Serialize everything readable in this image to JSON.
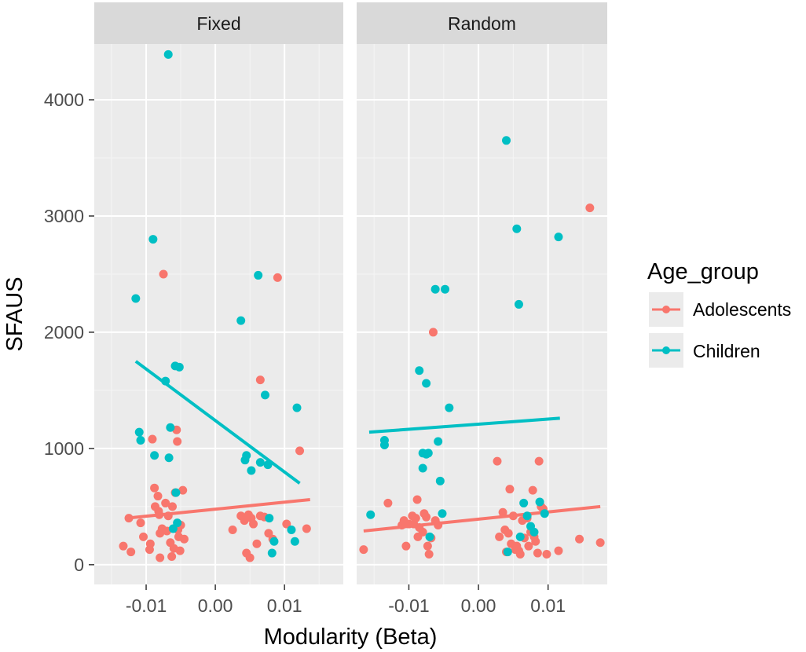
{
  "chart_data": {
    "type": "scatter",
    "xlabel": "Modularity (Beta)",
    "ylabel": "SFAUS",
    "xlim": [
      -0.0175,
      0.0185
    ],
    "ylim": [
      -170,
      4480
    ],
    "x_ticks": [
      -0.01,
      0.0,
      0.01
    ],
    "x_tick_labels": [
      "-0.01",
      "0.00",
      "0.01"
    ],
    "y_ticks": [
      0,
      1000,
      2000,
      3000,
      4000
    ],
    "y_tick_labels": [
      "0",
      "1000",
      "2000",
      "3000",
      "4000"
    ],
    "legend": {
      "title": "Age_group",
      "position": "right",
      "entries": [
        "Adolescents",
        "Children"
      ]
    },
    "series_colors": {
      "Adolescents": "#F8766D",
      "Children": "#00BFC4"
    },
    "panels": [
      {
        "title": "Fixed",
        "series": [
          {
            "name": "Adolescents",
            "points": [
              [
                -0.0133,
                160
              ],
              [
                -0.0125,
                400
              ],
              [
                -0.0122,
                110
              ],
              [
                -0.0108,
                360
              ],
              [
                -0.0104,
                240
              ],
              [
                -0.0095,
                130
              ],
              [
                -0.0094,
                180
              ],
              [
                -0.0091,
                1080
              ],
              [
                -0.0088,
                660
              ],
              [
                -0.0087,
                500
              ],
              [
                -0.0083,
                590
              ],
              [
                -0.0082,
                460
              ],
              [
                -0.0081,
                430
              ],
              [
                -0.008,
                60
              ],
              [
                -0.008,
                270
              ],
              [
                -0.0077,
                310
              ],
              [
                -0.0075,
                2500
              ],
              [
                -0.0072,
                530
              ],
              [
                -0.007,
                290
              ],
              [
                -0.0068,
                420
              ],
              [
                -0.0065,
                190
              ],
              [
                -0.0063,
                70
              ],
              [
                -0.0062,
                500
              ],
              [
                -0.006,
                140
              ],
              [
                -0.0058,
                620
              ],
              [
                -0.0056,
                1160
              ],
              [
                -0.0055,
                1060
              ],
              [
                -0.0054,
                300
              ],
              [
                -0.0053,
                240
              ],
              [
                -0.0051,
                120
              ],
              [
                -0.005,
                340
              ],
              [
                -0.0047,
                640
              ],
              [
                -0.0045,
                220
              ],
              [
                0.0025,
                300
              ],
              [
                0.0037,
                420
              ],
              [
                0.0042,
                380
              ],
              [
                0.0045,
                100
              ],
              [
                0.0048,
                430
              ],
              [
                0.005,
                60
              ],
              [
                0.0052,
                400
              ],
              [
                0.0055,
                350
              ],
              [
                0.006,
                180
              ],
              [
                0.0065,
                420
              ],
              [
                0.0065,
                1590
              ],
              [
                0.0071,
                410
              ],
              [
                0.0077,
                270
              ],
              [
                0.0083,
                220
              ],
              [
                0.009,
                2470
              ],
              [
                0.0103,
                350
              ],
              [
                0.0122,
                980
              ],
              [
                0.0132,
                310
              ]
            ]
          },
          {
            "name": "Children",
            "points": [
              [
                -0.0115,
                2290
              ],
              [
                -0.011,
                1140
              ],
              [
                -0.0108,
                1070
              ],
              [
                -0.009,
                2800
              ],
              [
                -0.0088,
                940
              ],
              [
                -0.0072,
                1580
              ],
              [
                -0.0068,
                4390
              ],
              [
                -0.0067,
                920
              ],
              [
                -0.0065,
                1180
              ],
              [
                -0.0061,
                310
              ],
              [
                -0.0058,
                1710
              ],
              [
                -0.0057,
                620
              ],
              [
                -0.0055,
                360
              ],
              [
                -0.0052,
                1700
              ],
              [
                0.0037,
                2100
              ],
              [
                0.0043,
                900
              ],
              [
                0.0045,
                940
              ],
              [
                0.0052,
                810
              ],
              [
                0.0062,
                2490
              ],
              [
                0.0065,
                880
              ],
              [
                0.0072,
                1460
              ],
              [
                0.0076,
                860
              ],
              [
                0.0078,
                400
              ],
              [
                0.0082,
                100
              ],
              [
                0.0085,
                200
              ],
              [
                0.011,
                300
              ],
              [
                0.0115,
                200
              ],
              [
                0.0118,
                1350
              ]
            ]
          }
        ],
        "fits": [
          {
            "name": "Adolescents",
            "x": [
              -0.0128,
              0.0137
            ],
            "y": [
              400,
              560
            ]
          },
          {
            "name": "Children",
            "x": [
              -0.0115,
              0.0122
            ],
            "y": [
              1750,
              700
            ]
          }
        ]
      },
      {
        "title": "Random",
        "series": [
          {
            "name": "Adolescents",
            "points": [
              [
                -0.0165,
                130
              ],
              [
                -0.013,
                530
              ],
              [
                -0.011,
                340
              ],
              [
                -0.0107,
                380
              ],
              [
                -0.0104,
                160
              ],
              [
                -0.01,
                350
              ],
              [
                -0.0095,
                420
              ],
              [
                -0.0093,
                350
              ],
              [
                -0.009,
                400
              ],
              [
                -0.0088,
                560
              ],
              [
                -0.0087,
                240
              ],
              [
                -0.0085,
                320
              ],
              [
                -0.008,
                280
              ],
              [
                -0.0078,
                440
              ],
              [
                -0.0075,
                410
              ],
              [
                -0.0073,
                160
              ],
              [
                -0.0071,
                90
              ],
              [
                -0.0068,
                230
              ],
              [
                -0.0065,
                2000
              ],
              [
                -0.0062,
                380
              ],
              [
                -0.0058,
                340
              ],
              [
                0.0027,
                890
              ],
              [
                0.003,
                240
              ],
              [
                0.0035,
                450
              ],
              [
                0.0038,
                300
              ],
              [
                0.004,
                110
              ],
              [
                0.0043,
                270
              ],
              [
                0.0045,
                650
              ],
              [
                0.0047,
                180
              ],
              [
                0.005,
                420
              ],
              [
                0.0053,
                130
              ],
              [
                0.0055,
                160
              ],
              [
                0.0058,
                120
              ],
              [
                0.006,
                90
              ],
              [
                0.0063,
                380
              ],
              [
                0.0066,
                230
              ],
              [
                0.007,
                400
              ],
              [
                0.0072,
                160
              ],
              [
                0.0075,
                280
              ],
              [
                0.0078,
                640
              ],
              [
                0.008,
                240
              ],
              [
                0.0082,
                200
              ],
              [
                0.0085,
                100
              ],
              [
                0.0087,
                890
              ],
              [
                0.009,
                500
              ],
              [
                0.0093,
                480
              ],
              [
                0.0098,
                90
              ],
              [
                0.0115,
                120
              ],
              [
                0.0145,
                220
              ],
              [
                0.016,
                3070
              ],
              [
                0.0175,
                190
              ]
            ]
          },
          {
            "name": "Children",
            "points": [
              [
                -0.0155,
                430
              ],
              [
                -0.0135,
                1070
              ],
              [
                -0.0135,
                1030
              ],
              [
                -0.0085,
                1670
              ],
              [
                -0.008,
                830
              ],
              [
                -0.008,
                960
              ],
              [
                -0.0075,
                1560
              ],
              [
                -0.0075,
                950
              ],
              [
                -0.0072,
                960
              ],
              [
                -0.007,
                240
              ],
              [
                -0.0062,
                2370
              ],
              [
                -0.0058,
                1060
              ],
              [
                -0.0055,
                720
              ],
              [
                -0.0052,
                440
              ],
              [
                -0.0048,
                2370
              ],
              [
                -0.0042,
                1350
              ],
              [
                0.004,
                3650
              ],
              [
                0.0042,
                110
              ],
              [
                0.0055,
                2890
              ],
              [
                0.0058,
                2240
              ],
              [
                0.006,
                240
              ],
              [
                0.0065,
                530
              ],
              [
                0.007,
                420
              ],
              [
                0.0075,
                330
              ],
              [
                0.008,
                280
              ],
              [
                0.0088,
                540
              ],
              [
                0.0095,
                440
              ],
              [
                0.0115,
                2820
              ]
            ]
          }
        ],
        "fits": [
          {
            "name": "Adolescents",
            "x": [
              -0.0165,
              0.0175
            ],
            "y": [
              290,
              500
            ]
          },
          {
            "name": "Children",
            "x": [
              -0.0157,
              0.0117
            ],
            "y": [
              1140,
              1260
            ]
          }
        ]
      }
    ]
  }
}
